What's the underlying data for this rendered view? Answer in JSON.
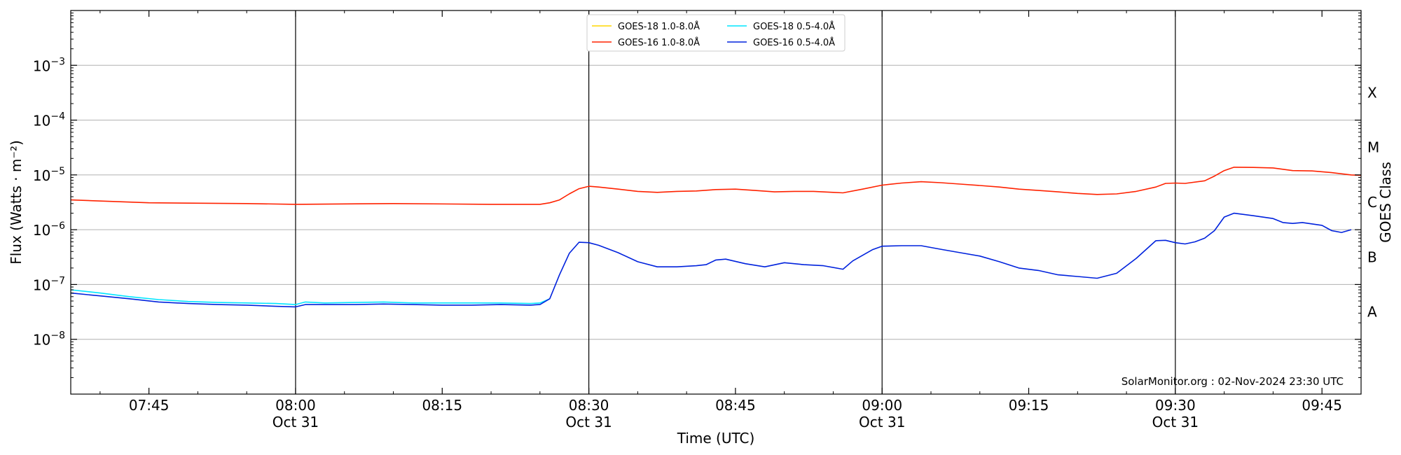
{
  "chart_data": {
    "type": "line",
    "ylabel": "Flux (Watts · m⁻²)",
    "xlabel": "Time (UTC)",
    "right_axis_label": "GOES Class",
    "credit": "SolarMonitor.org : 02-Nov-2024 23:30 UTC",
    "y_scale": "log",
    "ylim": [
      1e-09,
      0.01
    ],
    "y_ticks": [
      {
        "value": 1e-08,
        "base": "10",
        "exp": "−8"
      },
      {
        "value": 1e-07,
        "base": "10",
        "exp": "−7"
      },
      {
        "value": 1e-06,
        "base": "10",
        "exp": "−6"
      },
      {
        "value": 1e-05,
        "base": "10",
        "exp": "−5"
      },
      {
        "value": 0.0001,
        "base": "10",
        "exp": "−4"
      },
      {
        "value": 0.001,
        "base": "10",
        "exp": "−3"
      }
    ],
    "goes_classes": [
      {
        "label": "A",
        "value": 3.16e-08
      },
      {
        "label": "B",
        "value": 3.16e-07
      },
      {
        "label": "C",
        "value": 3.16e-06
      },
      {
        "label": "M",
        "value": 3.16e-05
      },
      {
        "label": "X",
        "value": 0.000316
      }
    ],
    "xlim": [
      "07:37",
      "09:49"
    ],
    "x_ticks": [
      {
        "time": "07:45",
        "label": "07:45",
        "date": ""
      },
      {
        "time": "08:00",
        "label": "08:00",
        "date": "Oct 31"
      },
      {
        "time": "08:15",
        "label": "08:15",
        "date": ""
      },
      {
        "time": "08:30",
        "label": "08:30",
        "date": "Oct 31"
      },
      {
        "time": "08:45",
        "label": "08:45",
        "date": ""
      },
      {
        "time": "09:00",
        "label": "09:00",
        "date": "Oct 31"
      },
      {
        "time": "09:15",
        "label": "09:15",
        "date": ""
      },
      {
        "time": "09:30",
        "label": "09:30",
        "date": "Oct 31"
      },
      {
        "time": "09:45",
        "label": "09:45",
        "date": ""
      }
    ],
    "vertical_lines": [
      "08:00",
      "08:30",
      "09:00",
      "09:30"
    ],
    "grid": "horizontal",
    "legend_position": "top-center",
    "series": [
      {
        "name": "GOES-18 1.0-8.0Å",
        "color": "#ffd700",
        "x": [],
        "values": []
      },
      {
        "name": "GOES-18 0.5-4.0Å",
        "color": "#00e5ff",
        "x": [
          "07:37",
          "07:40",
          "07:43",
          "07:46",
          "07:49",
          "07:52",
          "07:55",
          "07:58",
          "08:00",
          "08:01",
          "08:03",
          "08:06",
          "08:09",
          "08:12",
          "08:15",
          "08:18",
          "08:21",
          "08:24",
          "08:25",
          "08:26"
        ],
        "values": [
          8e-08,
          7e-08,
          6e-08,
          5.3e-08,
          4.9e-08,
          4.7e-08,
          4.6e-08,
          4.5e-08,
          4.3e-08,
          4.8e-08,
          4.6e-08,
          4.7e-08,
          4.8e-08,
          4.6e-08,
          4.6e-08,
          4.6e-08,
          4.6e-08,
          4.5e-08,
          4.6e-08,
          5.5e-08
        ]
      },
      {
        "name": "GOES-16 1.0-8.0Å",
        "color": "#ff2200",
        "x": [
          "07:37",
          "07:45",
          "07:55",
          "08:00",
          "08:10",
          "08:20",
          "08:25",
          "08:26",
          "08:27",
          "08:28",
          "08:29",
          "08:30",
          "08:31",
          "08:33",
          "08:35",
          "08:37",
          "08:39",
          "08:41",
          "08:43",
          "08:45",
          "08:47",
          "08:49",
          "08:51",
          "08:53",
          "08:55",
          "08:56",
          "08:58",
          "09:00",
          "09:02",
          "09:04",
          "09:06",
          "09:08",
          "09:10",
          "09:12",
          "09:14",
          "09:16",
          "09:18",
          "09:20",
          "09:22",
          "09:24",
          "09:26",
          "09:28",
          "09:29",
          "09:30",
          "09:31",
          "09:33",
          "09:34",
          "09:35",
          "09:36",
          "09:38",
          "09:40",
          "09:42",
          "09:44",
          "09:46",
          "09:48",
          "09:49"
        ],
        "values": [
          3.5e-06,
          3.1e-06,
          3e-06,
          2.9e-06,
          3e-06,
          2.9e-06,
          2.9e-06,
          3.1e-06,
          3.5e-06,
          4.5e-06,
          5.6e-06,
          6.2e-06,
          6e-06,
          5.5e-06,
          5e-06,
          4.8e-06,
          5e-06,
          5.1e-06,
          5.4e-06,
          5.5e-06,
          5.2e-06,
          4.9e-06,
          5e-06,
          5e-06,
          4.8e-06,
          4.7e-06,
          5.5e-06,
          6.5e-06,
          7.1e-06,
          7.5e-06,
          7.2e-06,
          6.8e-06,
          6.4e-06,
          6e-06,
          5.5e-06,
          5.2e-06,
          4.9e-06,
          4.6e-06,
          4.4e-06,
          4.5e-06,
          5e-06,
          6e-06,
          7e-06,
          7.1e-06,
          7e-06,
          7.8e-06,
          9.5e-06,
          1.2e-05,
          1.38e-05,
          1.37e-05,
          1.34e-05,
          1.2e-05,
          1.18e-05,
          1.1e-05,
          1e-05,
          9.8e-06
        ]
      },
      {
        "name": "GOES-16 0.5-4.0Å",
        "color": "#0022dd",
        "x": [
          "07:37",
          "07:40",
          "07:43",
          "07:46",
          "07:49",
          "07:52",
          "07:55",
          "07:58",
          "08:00",
          "08:01",
          "08:03",
          "08:06",
          "08:09",
          "08:12",
          "08:15",
          "08:18",
          "08:21",
          "08:24",
          "08:25",
          "08:26",
          "08:27",
          "08:28",
          "08:29",
          "08:30",
          "08:31",
          "08:33",
          "08:35",
          "08:37",
          "08:39",
          "08:41",
          "08:42",
          "08:43",
          "08:44",
          "08:46",
          "08:48",
          "08:50",
          "08:52",
          "08:54",
          "08:56",
          "08:57",
          "08:59",
          "09:00",
          "09:02",
          "09:04",
          "09:06",
          "09:08",
          "09:10",
          "09:12",
          "09:14",
          "09:16",
          "09:18",
          "09:20",
          "09:22",
          "09:24",
          "09:26",
          "09:28",
          "09:29",
          "09:30",
          "09:31",
          "09:32",
          "09:33",
          "09:34",
          "09:35",
          "09:36",
          "09:38",
          "09:40",
          "09:41",
          "09:42",
          "09:43",
          "09:45",
          "09:46",
          "09:47",
          "09:48"
        ],
        "values": [
          7e-08,
          6.2e-08,
          5.5e-08,
          4.8e-08,
          4.5e-08,
          4.3e-08,
          4.2e-08,
          4e-08,
          3.9e-08,
          4.3e-08,
          4.3e-08,
          4.3e-08,
          4.4e-08,
          4.3e-08,
          4.2e-08,
          4.2e-08,
          4.3e-08,
          4.2e-08,
          4.3e-08,
          5.5e-08,
          1.5e-07,
          3.7e-07,
          5.9e-07,
          5.8e-07,
          5.2e-07,
          3.8e-07,
          2.6e-07,
          2.1e-07,
          2.1e-07,
          2.2e-07,
          2.3e-07,
          2.8e-07,
          2.9e-07,
          2.4e-07,
          2.1e-07,
          2.5e-07,
          2.3e-07,
          2.2e-07,
          1.9e-07,
          2.7e-07,
          4.3e-07,
          5e-07,
          5.1e-07,
          5.1e-07,
          4.4e-07,
          3.8e-07,
          3.3e-07,
          2.6e-07,
          2e-07,
          1.8e-07,
          1.5e-07,
          1.4e-07,
          1.3e-07,
          1.6e-07,
          3e-07,
          6.3e-07,
          6.4e-07,
          5.8e-07,
          5.5e-07,
          6e-07,
          7e-07,
          9.6e-07,
          1.7e-06,
          2e-06,
          1.8e-06,
          1.6e-06,
          1.35e-06,
          1.3e-06,
          1.35e-06,
          1.2e-06,
          9.6e-07,
          8.9e-07,
          1e-06
        ]
      }
    ]
  }
}
